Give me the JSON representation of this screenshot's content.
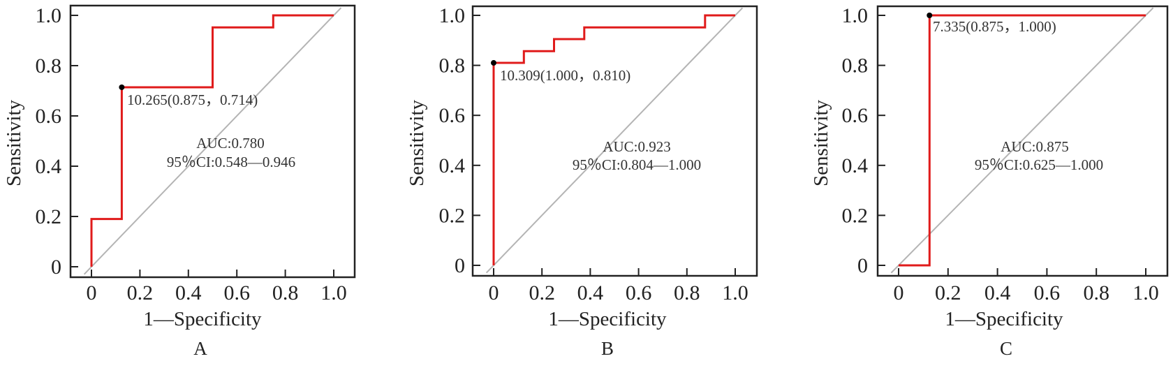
{
  "colors": {
    "roc": "#e01b1b",
    "diagonal": "#b4b4b4",
    "frame": "#222222",
    "marker": "#000000"
  },
  "chart_data": [
    {
      "type": "line",
      "panel_label": "A",
      "xlabel": "1—Specificity",
      "ylabel": "Sensitivity",
      "xlim": [
        -0.07,
        1.09
      ],
      "ylim": [
        -0.04,
        1.04
      ],
      "x_ticks": [
        0,
        0.2,
        0.4,
        0.6,
        0.8,
        1.0
      ],
      "x_tick_labels": [
        "0",
        "0.2",
        "0.4",
        "0.6",
        "0.8",
        "1.0"
      ],
      "y_ticks": [
        0,
        0.2,
        0.4,
        0.6,
        0.8,
        1.0
      ],
      "y_tick_labels": [
        "0",
        "0.2",
        "0.4",
        "0.6",
        "0.8",
        "1.0"
      ],
      "grid": false,
      "series": [
        {
          "name": "ROC",
          "x": [
            0,
            0,
            0.125,
            0.125,
            0.5,
            0.5,
            0.75,
            0.75,
            1.0
          ],
          "y": [
            0,
            0.19,
            0.19,
            0.714,
            0.714,
            0.952,
            0.952,
            1.0,
            1.0
          ]
        },
        {
          "name": "reference",
          "x": [
            -0.03,
            1.03
          ],
          "y": [
            -0.03,
            1.03
          ]
        }
      ],
      "cutoff_point": {
        "x": 0.125,
        "y": 0.714,
        "label": "10.265(0.875，0.714)"
      },
      "annotations": {
        "auc": "AUC:0.780",
        "ci": "95％CI:0.548—0.946"
      }
    },
    {
      "type": "line",
      "panel_label": "B",
      "xlabel": "1—Specificity",
      "ylabel": "Sensitivity",
      "xlim": [
        -0.07,
        1.09
      ],
      "ylim": [
        -0.04,
        1.04
      ],
      "x_ticks": [
        0,
        0.2,
        0.4,
        0.6,
        0.8,
        1.0
      ],
      "x_tick_labels": [
        "0",
        "0.2",
        "0.4",
        "0.6",
        "0.8",
        "1.0"
      ],
      "y_ticks": [
        0,
        0.2,
        0.4,
        0.6,
        0.8,
        1.0
      ],
      "y_tick_labels": [
        "0",
        "0.2",
        "0.4",
        "0.6",
        "0.8",
        "1.0"
      ],
      "grid": false,
      "series": [
        {
          "name": "ROC",
          "x": [
            0,
            0,
            0.125,
            0.125,
            0.25,
            0.25,
            0.375,
            0.375,
            0.875,
            0.875,
            1.0
          ],
          "y": [
            0,
            0.81,
            0.81,
            0.857,
            0.857,
            0.905,
            0.905,
            0.952,
            0.952,
            1.0,
            1.0
          ]
        },
        {
          "name": "reference",
          "x": [
            -0.03,
            1.03
          ],
          "y": [
            -0.03,
            1.03
          ]
        }
      ],
      "cutoff_point": {
        "x": 0.0,
        "y": 0.81,
        "label": "10.309(1.000，0.810)"
      },
      "annotations": {
        "auc": "AUC:0.923",
        "ci": "95％CI:0.804—1.000"
      }
    },
    {
      "type": "line",
      "panel_label": "C",
      "xlabel": "1—Specificity",
      "ylabel": "Sensitivity",
      "xlim": [
        -0.07,
        1.09
      ],
      "ylim": [
        -0.04,
        1.04
      ],
      "x_ticks": [
        0,
        0.2,
        0.4,
        0.6,
        0.8,
        1.0
      ],
      "x_tick_labels": [
        "0",
        "0.2",
        "0.4",
        "0.6",
        "0.8",
        "1.0"
      ],
      "y_ticks": [
        0,
        0.2,
        0.4,
        0.6,
        0.8,
        1.0
      ],
      "y_tick_labels": [
        "0",
        "0.2",
        "0.4",
        "0.6",
        "0.8",
        "1.0"
      ],
      "grid": false,
      "series": [
        {
          "name": "ROC",
          "x": [
            0,
            0.125,
            0.125,
            1.0
          ],
          "y": [
            0,
            0,
            1.0,
            1.0
          ]
        },
        {
          "name": "reference",
          "x": [
            -0.03,
            1.03
          ],
          "y": [
            -0.03,
            1.03
          ]
        }
      ],
      "cutoff_point": {
        "x": 0.125,
        "y": 1.0,
        "label": "7.335(0.875，1.000)"
      },
      "annotations": {
        "auc": "AUC:0.875",
        "ci": "95％CI:0.625—1.000"
      }
    }
  ]
}
